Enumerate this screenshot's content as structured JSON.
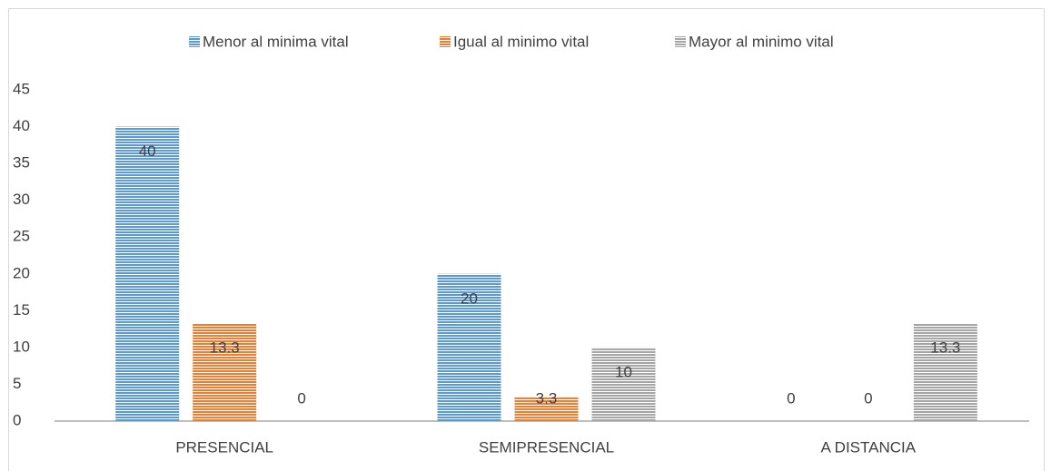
{
  "chart_data": {
    "type": "bar",
    "categories": [
      "PRESENCIAL",
      "SEMIPRESENCIAL",
      "A DISTANCIA"
    ],
    "series": [
      {
        "name": "Menor al minima vital",
        "color": "#5b9bd5",
        "values": [
          40,
          20,
          0
        ]
      },
      {
        "name": "Igual al minimo vital",
        "color": "#ed7d31",
        "values": [
          13.3,
          3.3,
          0
        ]
      },
      {
        "name": "Mayor al minimo vital",
        "color": "#a5a5a5",
        "values": [
          0,
          10,
          13.3
        ]
      }
    ],
    "ylim": [
      0,
      45
    ],
    "yticks": [
      0,
      5,
      10,
      15,
      20,
      25,
      30,
      35,
      40,
      45
    ],
    "grid": false,
    "legend": "top"
  }
}
